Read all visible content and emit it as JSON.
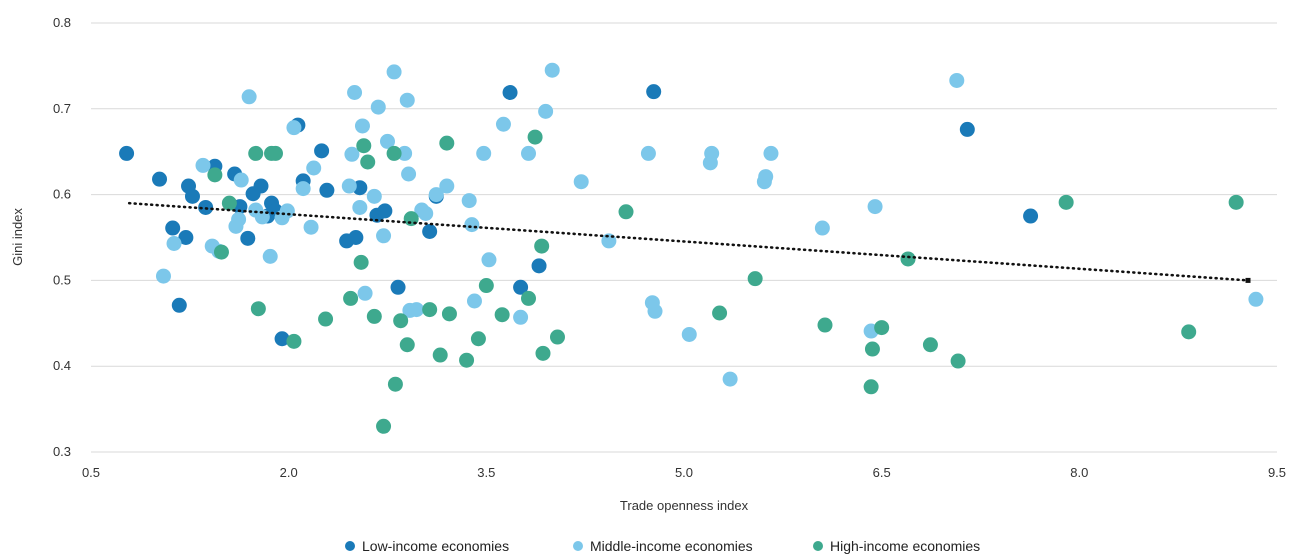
{
  "chart_data": {
    "type": "scatter",
    "xlabel": "Trade openness index",
    "ylabel": "Gini index",
    "xlim": [
      0.5,
      9.5
    ],
    "ylim": [
      0.3,
      0.8
    ],
    "xticks": [
      "0.5",
      "2.0",
      "3.5",
      "5.0",
      "6.5",
      "8.0",
      "9.5"
    ],
    "yticks": [
      "0.3",
      "0.4",
      "0.5",
      "0.6",
      "0.7",
      "0.8"
    ],
    "grid": "horizontal",
    "legend_position": "bottom",
    "trendline": {
      "style": "dotted",
      "color": "#111111",
      "x": [
        0.79,
        9.28
      ],
      "y": [
        0.59,
        0.5
      ]
    },
    "series": [
      {
        "name": "Low-income economies",
        "color": "#1a7ab8",
        "points": [
          [
            0.77,
            0.648
          ],
          [
            1.02,
            0.618
          ],
          [
            1.12,
            0.561
          ],
          [
            1.17,
            0.471
          ],
          [
            1.22,
            0.55
          ],
          [
            1.24,
            0.61
          ],
          [
            1.27,
            0.598
          ],
          [
            1.37,
            0.585
          ],
          [
            1.44,
            0.633
          ],
          [
            1.59,
            0.624
          ],
          [
            1.63,
            0.586
          ],
          [
            1.69,
            0.549
          ],
          [
            1.73,
            0.601
          ],
          [
            1.79,
            0.61
          ],
          [
            1.84,
            0.575
          ],
          [
            1.87,
            0.59
          ],
          [
            1.9,
            0.581
          ],
          [
            1.95,
            0.432
          ],
          [
            2.07,
            0.681
          ],
          [
            2.11,
            0.616
          ],
          [
            2.25,
            0.651
          ],
          [
            2.29,
            0.605
          ],
          [
            2.44,
            0.546
          ],
          [
            2.51,
            0.55
          ],
          [
            2.54,
            0.608
          ],
          [
            2.67,
            0.576
          ],
          [
            2.73,
            0.581
          ],
          [
            2.83,
            0.492
          ],
          [
            3.07,
            0.557
          ],
          [
            3.12,
            0.598
          ],
          [
            3.68,
            0.719
          ],
          [
            3.76,
            0.492
          ],
          [
            3.9,
            0.517
          ],
          [
            4.77,
            0.72
          ],
          [
            7.15,
            0.676
          ],
          [
            7.63,
            0.575
          ]
        ]
      },
      {
        "name": "Middle-income economies",
        "color": "#7cc7ea",
        "points": [
          [
            1.05,
            0.505
          ],
          [
            1.13,
            0.543
          ],
          [
            1.35,
            0.634
          ],
          [
            1.42,
            0.54
          ],
          [
            1.47,
            0.534
          ],
          [
            1.6,
            0.563
          ],
          [
            1.62,
            0.571
          ],
          [
            1.64,
            0.617
          ],
          [
            1.7,
            0.714
          ],
          [
            1.75,
            0.582
          ],
          [
            1.8,
            0.574
          ],
          [
            1.86,
            0.528
          ],
          [
            1.95,
            0.573
          ],
          [
            1.99,
            0.581
          ],
          [
            2.04,
            0.678
          ],
          [
            2.11,
            0.607
          ],
          [
            2.17,
            0.562
          ],
          [
            2.19,
            0.631
          ],
          [
            2.46,
            0.61
          ],
          [
            2.48,
            0.647
          ],
          [
            2.5,
            0.719
          ],
          [
            2.54,
            0.585
          ],
          [
            2.56,
            0.68
          ],
          [
            2.58,
            0.485
          ],
          [
            2.65,
            0.598
          ],
          [
            2.68,
            0.702
          ],
          [
            2.72,
            0.552
          ],
          [
            2.75,
            0.662
          ],
          [
            2.8,
            0.743
          ],
          [
            2.88,
            0.648
          ],
          [
            2.9,
            0.71
          ],
          [
            2.91,
            0.624
          ],
          [
            2.92,
            0.465
          ],
          [
            2.97,
            0.466
          ],
          [
            3.01,
            0.582
          ],
          [
            3.04,
            0.578
          ],
          [
            3.12,
            0.6
          ],
          [
            3.2,
            0.61
          ],
          [
            3.37,
            0.593
          ],
          [
            3.39,
            0.565
          ],
          [
            3.41,
            0.476
          ],
          [
            3.48,
            0.648
          ],
          [
            3.52,
            0.524
          ],
          [
            3.63,
            0.682
          ],
          [
            3.76,
            0.457
          ],
          [
            3.82,
            0.648
          ],
          [
            3.95,
            0.697
          ],
          [
            4.0,
            0.745
          ],
          [
            4.22,
            0.615
          ],
          [
            4.43,
            0.546
          ],
          [
            4.73,
            0.648
          ],
          [
            4.76,
            0.474
          ],
          [
            4.78,
            0.464
          ],
          [
            5.04,
            0.437
          ],
          [
            5.2,
            0.637
          ],
          [
            5.21,
            0.648
          ],
          [
            5.35,
            0.385
          ],
          [
            5.61,
            0.615
          ],
          [
            5.62,
            0.621
          ],
          [
            5.66,
            0.648
          ],
          [
            6.05,
            0.561
          ],
          [
            6.42,
            0.441
          ],
          [
            6.45,
            0.586
          ],
          [
            7.07,
            0.733
          ],
          [
            9.34,
            0.478
          ]
        ]
      },
      {
        "name": "High-income economies",
        "color": "#3ea98e",
        "points": [
          [
            1.44,
            0.623
          ],
          [
            1.49,
            0.533
          ],
          [
            1.55,
            0.59
          ],
          [
            1.75,
            0.648
          ],
          [
            1.77,
            0.467
          ],
          [
            1.87,
            0.648
          ],
          [
            1.9,
            0.648
          ],
          [
            2.04,
            0.429
          ],
          [
            2.28,
            0.455
          ],
          [
            2.47,
            0.479
          ],
          [
            2.55,
            0.521
          ],
          [
            2.57,
            0.657
          ],
          [
            2.6,
            0.638
          ],
          [
            2.65,
            0.458
          ],
          [
            2.72,
            0.33
          ],
          [
            2.8,
            0.648
          ],
          [
            2.81,
            0.379
          ],
          [
            2.85,
            0.453
          ],
          [
            2.9,
            0.425
          ],
          [
            2.93,
            0.572
          ],
          [
            3.07,
            0.466
          ],
          [
            3.15,
            0.413
          ],
          [
            3.2,
            0.66
          ],
          [
            3.22,
            0.461
          ],
          [
            3.35,
            0.407
          ],
          [
            3.44,
            0.432
          ],
          [
            3.5,
            0.494
          ],
          [
            3.62,
            0.46
          ],
          [
            3.82,
            0.479
          ],
          [
            3.87,
            0.667
          ],
          [
            3.92,
            0.54
          ],
          [
            3.93,
            0.415
          ],
          [
            4.04,
            0.434
          ],
          [
            4.56,
            0.58
          ],
          [
            5.27,
            0.462
          ],
          [
            5.54,
            0.502
          ],
          [
            6.07,
            0.448
          ],
          [
            6.43,
            0.42
          ],
          [
            6.42,
            0.376
          ],
          [
            6.5,
            0.445
          ],
          [
            6.7,
            0.525
          ],
          [
            6.87,
            0.425
          ],
          [
            7.08,
            0.406
          ],
          [
            7.9,
            0.591
          ],
          [
            8.83,
            0.44
          ],
          [
            9.19,
            0.591
          ]
        ]
      }
    ]
  }
}
